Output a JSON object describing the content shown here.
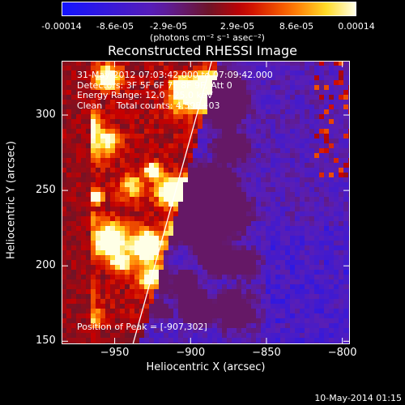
{
  "chart_data": {
    "type": "heatmap",
    "title": "Reconstructed RHESSI Image",
    "xlabel": "Heliocentric X (arcsec)",
    "ylabel": "Heliocentric Y (arcsec)",
    "xlim": [
      -985,
      -795
    ],
    "ylim": [
      148,
      336
    ],
    "xticks": [
      -950,
      -900,
      -850,
      -800
    ],
    "yticks": [
      150,
      200,
      250,
      300
    ],
    "colorbar": {
      "min": -0.00014,
      "max": 0.00014,
      "ticks": [
        "-0.00014",
        "-8.6e-05",
        "-2.9e-05",
        "2.9e-05",
        "8.6e-05",
        "0.00014"
      ],
      "units": "(photons cm⁻² s⁻¹ asec⁻²)"
    },
    "annotations": [
      "31-May-2012 07:03:42.000 to 07:09:42.000",
      "Detectors: 3F 5F 6F 7F 8F 9F, Att 0",
      "Energy Range: 12.0 - 25.0 keV",
      "Clean     Total counts: 4.59E+03"
    ],
    "peak_label": "Position of Peak = [-907,302]",
    "limb_line": [
      [
        -938,
        148
      ],
      [
        -886,
        336
      ]
    ],
    "colors": {
      "background": "#000000",
      "axes": "#ffffff",
      "negative": "#2020ff",
      "positive_high": "#ffffc0"
    }
  },
  "footer": "10-May-2014 01:15"
}
